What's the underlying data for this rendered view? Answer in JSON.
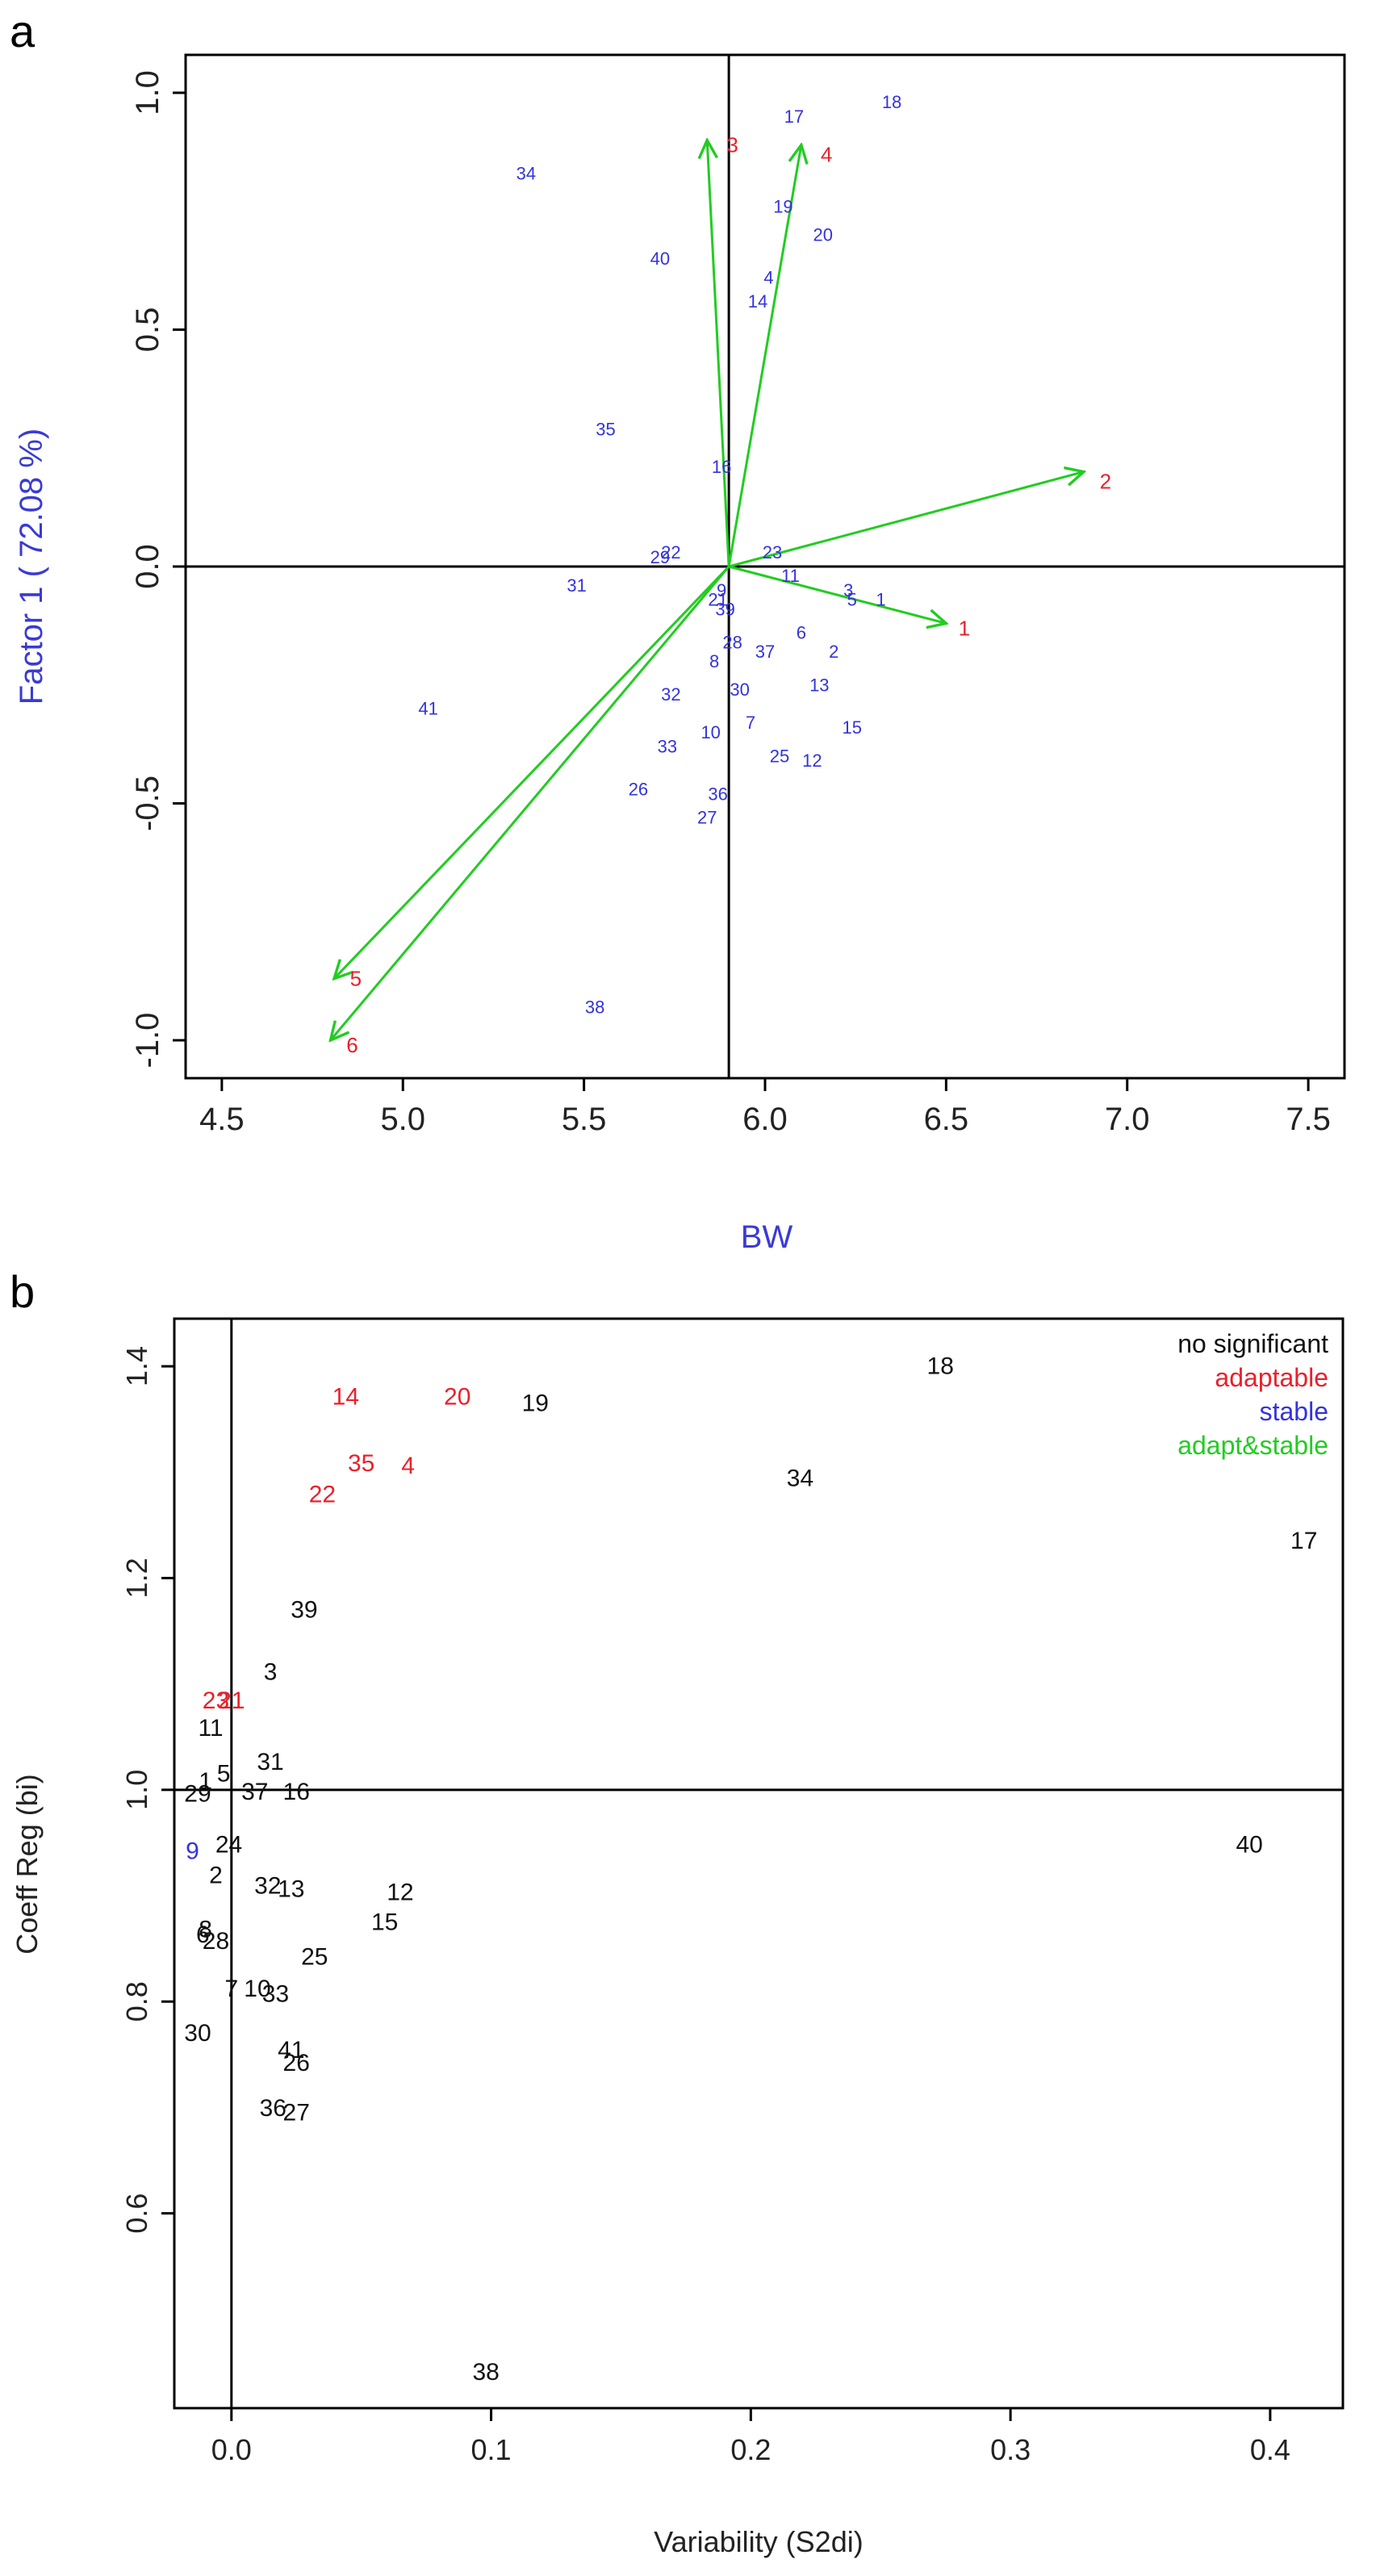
{
  "colors": {
    "blue": "#3333dd",
    "red": "#e8212b",
    "green": "#22cc22",
    "black": "#111111",
    "axis_label_blue": "#3a3ad6"
  },
  "chart_data": [
    {
      "panel_label": "a",
      "type": "scatter",
      "xlabel": "BW",
      "ylabel": "Factor 1 ( 72.08 %)",
      "xlim": [
        4.4,
        7.6
      ],
      "ylim": [
        -1.08,
        1.08
      ],
      "xticks": [
        "4.5",
        "5.0",
        "5.5",
        "6.0",
        "6.5",
        "7.0",
        "7.5"
      ],
      "xtick_values": [
        4.5,
        5.0,
        5.5,
        6.0,
        6.5,
        7.0,
        7.5
      ],
      "yticks": [
        "-1.0",
        "-0.5",
        "0.0",
        "0.5",
        "1.0"
      ],
      "ytick_values": [
        -1.0,
        -0.5,
        0.0,
        0.5,
        1.0
      ],
      "reference_lines": {
        "x": 5.9,
        "y": 0.0
      },
      "vectors": [
        {
          "label": "1",
          "x": 6.5,
          "y": -0.12,
          "label_x": 6.55,
          "label_y": -0.13
        },
        {
          "label": "2",
          "x": 6.88,
          "y": 0.2,
          "label_x": 6.94,
          "label_y": 0.18
        },
        {
          "label": "3",
          "x": 5.84,
          "y": 0.9,
          "label_x": 5.91,
          "label_y": 0.89
        },
        {
          "label": "4",
          "x": 6.1,
          "y": 0.89,
          "label_x": 6.17,
          "label_y": 0.87
        },
        {
          "label": "5",
          "x": 4.81,
          "y": -0.87,
          "label_x": 4.87,
          "label_y": -0.87
        },
        {
          "label": "6",
          "x": 4.8,
          "y": -1.0,
          "label_x": 4.86,
          "label_y": -1.01
        }
      ],
      "points": [
        {
          "label": "1",
          "x": 6.32,
          "y": -0.07
        },
        {
          "label": "2",
          "x": 6.19,
          "y": -0.18
        },
        {
          "label": "3",
          "x": 6.23,
          "y": -0.05
        },
        {
          "label": "4",
          "x": 6.01,
          "y": 0.61
        },
        {
          "label": "5",
          "x": 6.24,
          "y": -0.07
        },
        {
          "label": "6",
          "x": 6.1,
          "y": -0.14
        },
        {
          "label": "7",
          "x": 5.96,
          "y": -0.33
        },
        {
          "label": "8",
          "x": 5.86,
          "y": -0.2
        },
        {
          "label": "9",
          "x": 5.88,
          "y": -0.05
        },
        {
          "label": "10",
          "x": 5.85,
          "y": -0.35
        },
        {
          "label": "11",
          "x": 6.07,
          "y": -0.02
        },
        {
          "label": "12",
          "x": 6.13,
          "y": -0.41
        },
        {
          "label": "13",
          "x": 6.15,
          "y": -0.25
        },
        {
          "label": "14",
          "x": 5.98,
          "y": 0.56
        },
        {
          "label": "15",
          "x": 6.24,
          "y": -0.34
        },
        {
          "label": "16",
          "x": 5.88,
          "y": 0.21
        },
        {
          "label": "17",
          "x": 6.08,
          "y": 0.95
        },
        {
          "label": "18",
          "x": 6.35,
          "y": 0.98
        },
        {
          "label": "19",
          "x": 6.05,
          "y": 0.76
        },
        {
          "label": "20",
          "x": 6.16,
          "y": 0.7
        },
        {
          "label": "21",
          "x": 5.87,
          "y": -0.07
        },
        {
          "label": "22",
          "x": 5.74,
          "y": 0.03
        },
        {
          "label": "23",
          "x": 6.02,
          "y": 0.03
        },
        {
          "label": "25",
          "x": 6.04,
          "y": -0.4
        },
        {
          "label": "26",
          "x": 5.65,
          "y": -0.47
        },
        {
          "label": "27",
          "x": 5.84,
          "y": -0.53
        },
        {
          "label": "28",
          "x": 5.91,
          "y": -0.16
        },
        {
          "label": "29",
          "x": 5.71,
          "y": 0.02
        },
        {
          "label": "30",
          "x": 5.93,
          "y": -0.26
        },
        {
          "label": "31",
          "x": 5.48,
          "y": -0.04
        },
        {
          "label": "32",
          "x": 5.74,
          "y": -0.27
        },
        {
          "label": "33",
          "x": 5.73,
          "y": -0.38
        },
        {
          "label": "34",
          "x": 5.34,
          "y": 0.83
        },
        {
          "label": "35",
          "x": 5.56,
          "y": 0.29
        },
        {
          "label": "36",
          "x": 5.87,
          "y": -0.48
        },
        {
          "label": "37",
          "x": 6.0,
          "y": -0.18
        },
        {
          "label": "38",
          "x": 5.53,
          "y": -0.93
        },
        {
          "label": "39",
          "x": 5.89,
          "y": -0.09
        },
        {
          "label": "40",
          "x": 5.71,
          "y": 0.65
        },
        {
          "label": "41",
          "x": 5.07,
          "y": -0.3
        }
      ]
    },
    {
      "panel_label": "b",
      "type": "scatter",
      "xlabel": "Variability (S2di)",
      "ylabel": "Coeff Reg (bi)",
      "xlim": [
        -0.022,
        0.428
      ],
      "ylim": [
        0.416,
        1.445
      ],
      "xticks": [
        "0.0",
        "0.1",
        "0.2",
        "0.3",
        "0.4"
      ],
      "xtick_values": [
        0.0,
        0.1,
        0.2,
        0.3,
        0.4
      ],
      "yticks": [
        "0.6",
        "0.8",
        "1.0",
        "1.2",
        "1.4"
      ],
      "ytick_values": [
        0.6,
        0.8,
        1.0,
        1.2,
        1.4
      ],
      "reference_lines": {
        "x": 0.0,
        "y": 1.0
      },
      "legend": {
        "position": "top-right",
        "entries": [
          {
            "label": "no significant",
            "category": "ns"
          },
          {
            "label": "adaptable",
            "category": "adaptable"
          },
          {
            "label": "stable",
            "category": "stable"
          },
          {
            "label": "adapt&stable",
            "category": "adapt_stable"
          }
        ]
      },
      "points": [
        {
          "label": "18",
          "x": 0.273,
          "y": 1.4,
          "category": "ns"
        },
        {
          "label": "14",
          "x": 0.044,
          "y": 1.371,
          "category": "adaptable"
        },
        {
          "label": "20",
          "x": 0.087,
          "y": 1.371,
          "category": "adaptable"
        },
        {
          "label": "19",
          "x": 0.117,
          "y": 1.365,
          "category": "ns"
        },
        {
          "label": "35",
          "x": 0.05,
          "y": 1.308,
          "category": "adaptable"
        },
        {
          "label": "4",
          "x": 0.068,
          "y": 1.306,
          "category": "adaptable"
        },
        {
          "label": "34",
          "x": 0.219,
          "y": 1.294,
          "category": "ns"
        },
        {
          "label": "22",
          "x": 0.035,
          "y": 1.279,
          "category": "adaptable"
        },
        {
          "label": "17",
          "x": 0.413,
          "y": 1.235,
          "category": "ns"
        },
        {
          "label": "39",
          "x": 0.028,
          "y": 1.17,
          "category": "ns"
        },
        {
          "label": "3",
          "x": 0.015,
          "y": 1.111,
          "category": "ns"
        },
        {
          "label": "23",
          "x": -0.006,
          "y": 1.084,
          "category": "adaptable"
        },
        {
          "label": "21",
          "x": 0.0,
          "y": 1.084,
          "category": "adaptable"
        },
        {
          "label": "11",
          "x": -0.008,
          "y": 1.058,
          "category": "ns"
        },
        {
          "label": "31",
          "x": 0.015,
          "y": 1.026,
          "category": "ns"
        },
        {
          "label": "5",
          "x": -0.003,
          "y": 1.015,
          "category": "ns"
        },
        {
          "label": "1",
          "x": -0.01,
          "y": 1.008,
          "category": "ns"
        },
        {
          "label": "29",
          "x": -0.013,
          "y": 0.996,
          "category": "ns"
        },
        {
          "label": "37",
          "x": 0.009,
          "y": 0.998,
          "category": "ns"
        },
        {
          "label": "16",
          "x": 0.025,
          "y": 0.998,
          "category": "ns"
        },
        {
          "label": "40",
          "x": 0.392,
          "y": 0.948,
          "category": "ns"
        },
        {
          "label": "24",
          "x": -0.001,
          "y": 0.948,
          "category": "ns"
        },
        {
          "label": "9",
          "x": -0.015,
          "y": 0.942,
          "category": "stable"
        },
        {
          "label": "2",
          "x": -0.006,
          "y": 0.919,
          "category": "ns"
        },
        {
          "label": "32",
          "x": 0.014,
          "y": 0.909,
          "category": "ns"
        },
        {
          "label": "13",
          "x": 0.023,
          "y": 0.906,
          "category": "ns"
        },
        {
          "label": "12",
          "x": 0.065,
          "y": 0.903,
          "category": "ns"
        },
        {
          "label": "15",
          "x": 0.059,
          "y": 0.875,
          "category": "ns"
        },
        {
          "label": "8",
          "x": -0.01,
          "y": 0.868,
          "category": "ns"
        },
        {
          "label": "6",
          "x": -0.011,
          "y": 0.863,
          "category": "ns"
        },
        {
          "label": "28",
          "x": -0.006,
          "y": 0.857,
          "category": "ns"
        },
        {
          "label": "25",
          "x": 0.032,
          "y": 0.842,
          "category": "ns"
        },
        {
          "label": "7",
          "x": 0.0,
          "y": 0.812,
          "category": "ns"
        },
        {
          "label": "10",
          "x": 0.01,
          "y": 0.812,
          "category": "ns"
        },
        {
          "label": "33",
          "x": 0.017,
          "y": 0.807,
          "category": "ns"
        },
        {
          "label": "30",
          "x": -0.013,
          "y": 0.77,
          "category": "ns"
        },
        {
          "label": "41",
          "x": 0.023,
          "y": 0.754,
          "category": "ns"
        },
        {
          "label": "26",
          "x": 0.025,
          "y": 0.742,
          "category": "ns"
        },
        {
          "label": "36",
          "x": 0.016,
          "y": 0.699,
          "category": "ns"
        },
        {
          "label": "27",
          "x": 0.025,
          "y": 0.695,
          "category": "ns"
        },
        {
          "label": "38",
          "x": 0.098,
          "y": 0.45,
          "category": "ns"
        }
      ]
    }
  ]
}
